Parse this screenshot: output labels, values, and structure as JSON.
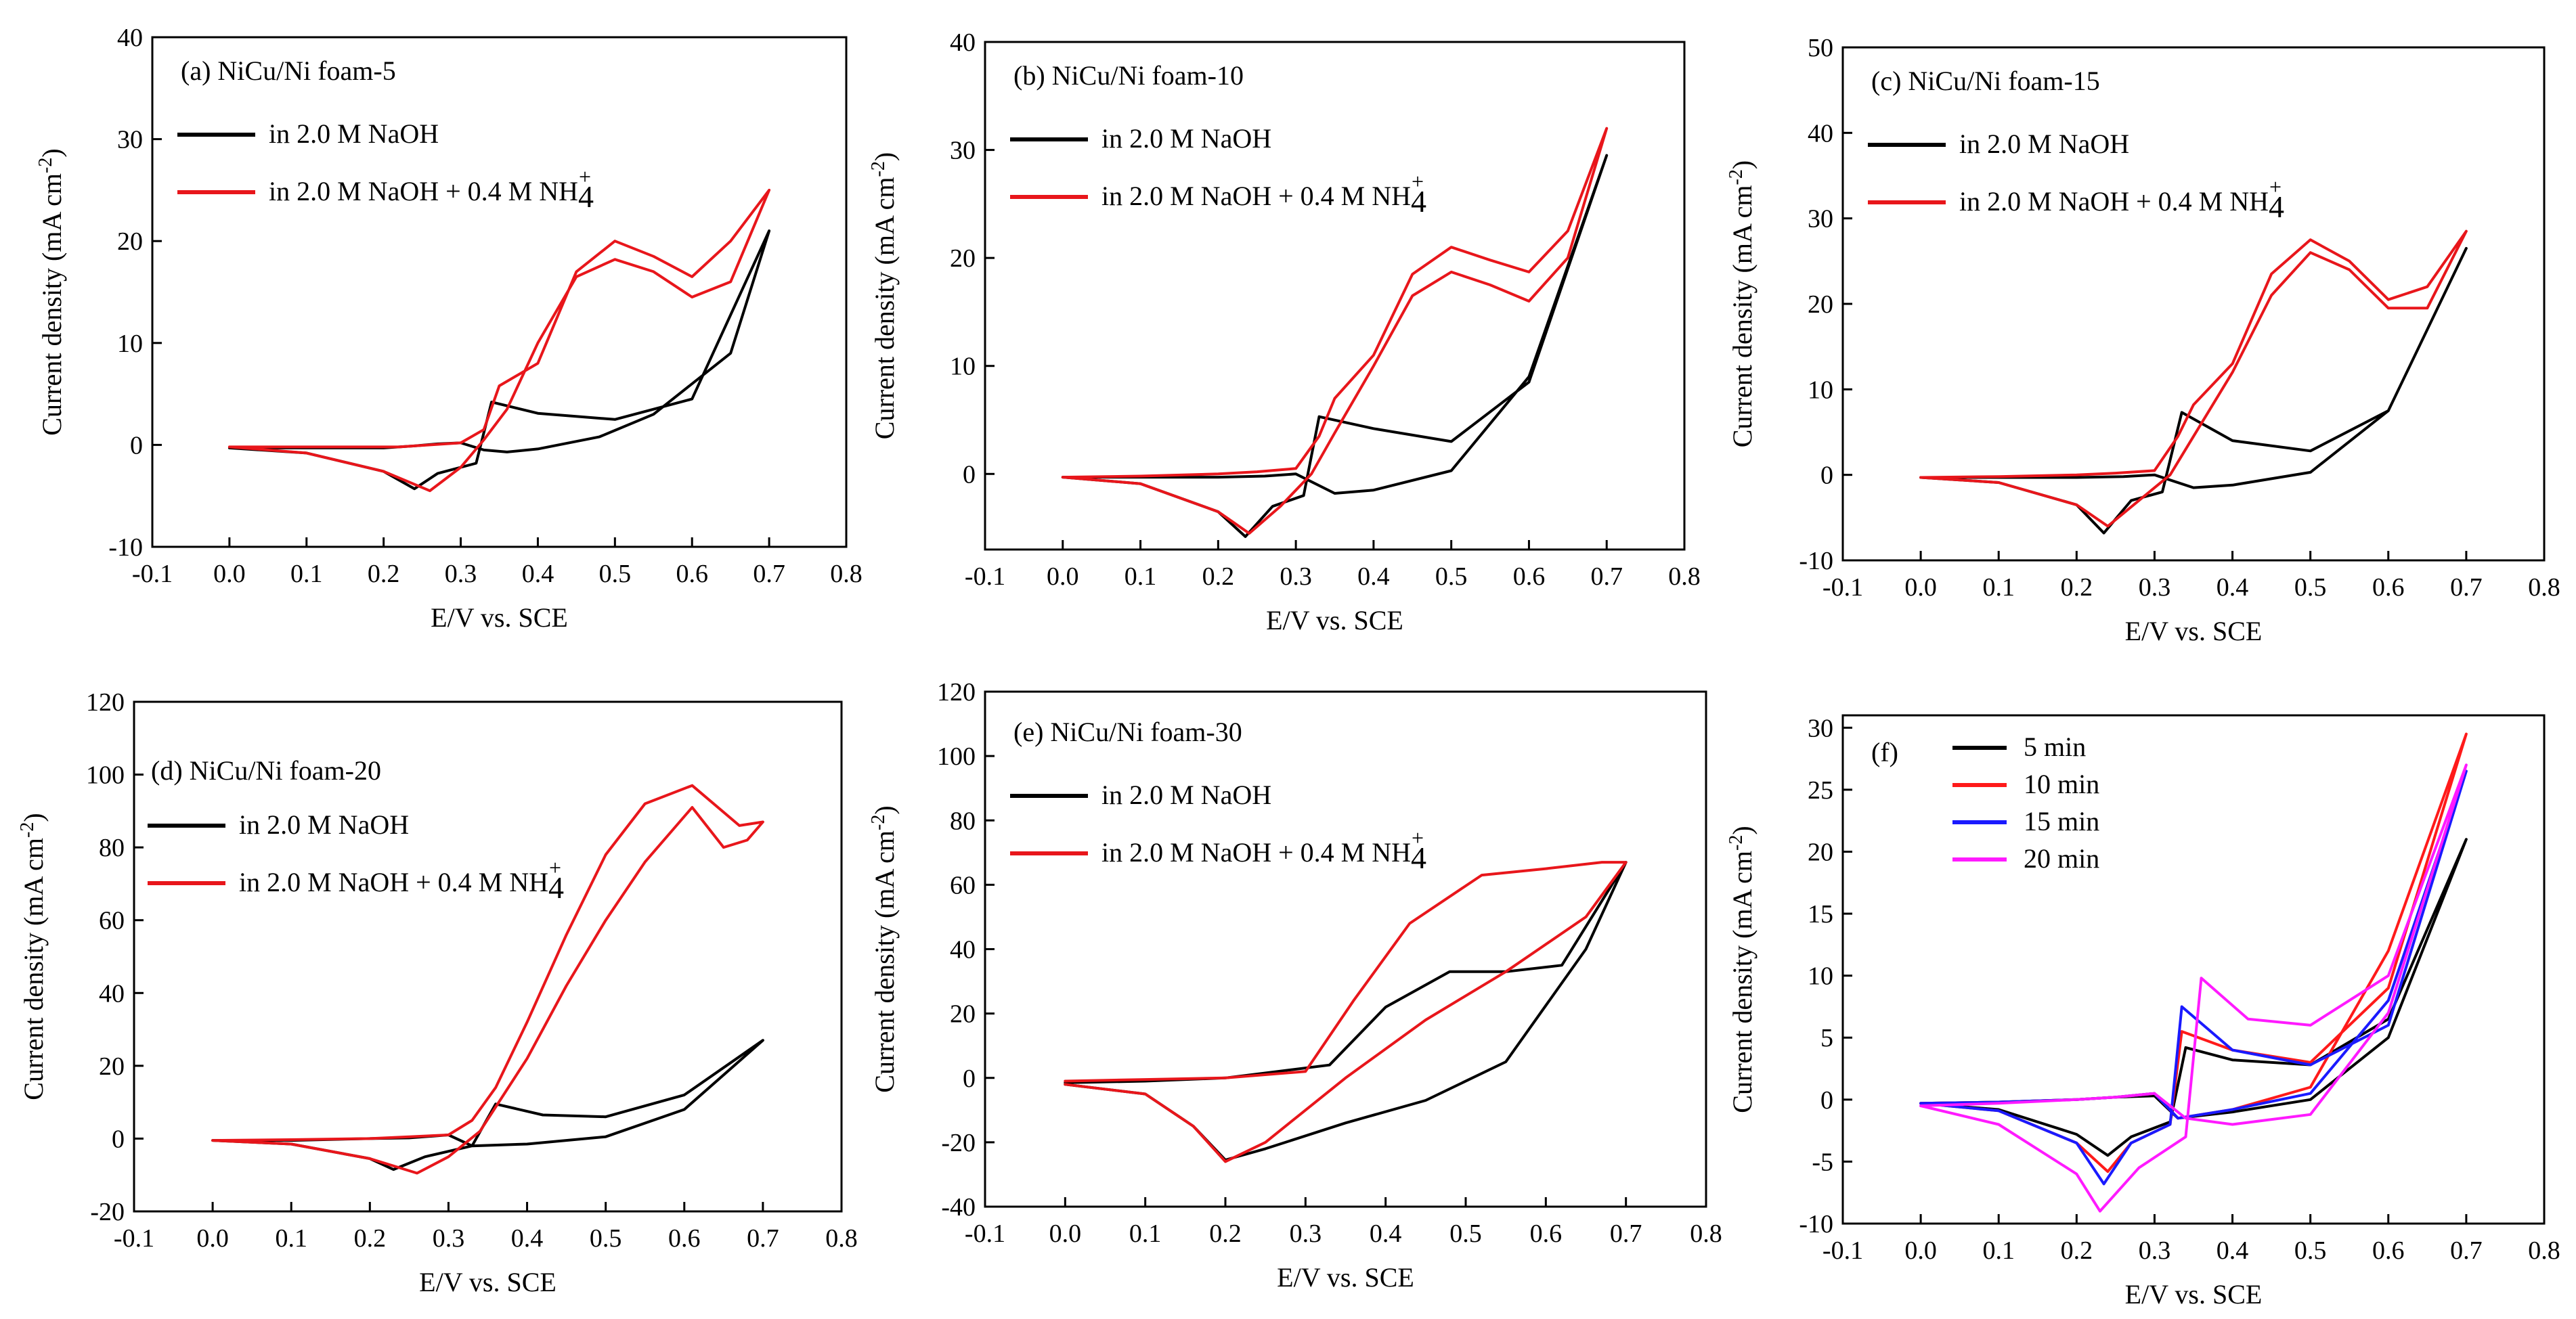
{
  "figure": {
    "alt": "Cyclic voltammetry curves of NiCu/Ni foam electrodes"
  },
  "chart_data": [
    {
      "type": "line",
      "panel": "(a)",
      "title": "(a) NiCu/Ni foam-5",
      "xlabel": "E/V vs. SCE",
      "ylabel": "Current density (mA cm-2)",
      "xlim": [
        -0.1,
        0.8
      ],
      "ylim": [
        -10,
        40
      ],
      "xticks": [
        -0.1,
        0.0,
        0.1,
        0.2,
        0.3,
        0.4,
        0.5,
        0.6,
        0.7,
        0.8
      ],
      "yticks": [
        -10,
        0,
        10,
        20,
        30,
        40
      ],
      "grid": false,
      "legend_position": "top-left",
      "series": [
        {
          "name": "in 2.0 M NaOH",
          "color": "#000000",
          "x": [
            0.0,
            0.1,
            0.2,
            0.24,
            0.27,
            0.32,
            0.34,
            0.4,
            0.5,
            0.6,
            0.7,
            0.65,
            0.55,
            0.48,
            0.4,
            0.36,
            0.33,
            0.3,
            0.27,
            0.24,
            0.2,
            0.1,
            0.0
          ],
          "y": [
            -0.3,
            -0.8,
            -2.6,
            -4.3,
            -2.8,
            -1.8,
            4.2,
            3.1,
            2.5,
            4.5,
            21,
            9,
            3,
            0.8,
            -0.4,
            -0.7,
            -0.5,
            0.2,
            0.1,
            -0.1,
            -0.3,
            -0.3,
            -0.3
          ]
        },
        {
          "name": "in 2.0 M NaOH + 0.4 M NH4+",
          "color": "#e8161b",
          "x": [
            0.0,
            0.1,
            0.2,
            0.26,
            0.3,
            0.33,
            0.36,
            0.4,
            0.45,
            0.5,
            0.55,
            0.6,
            0.65,
            0.7,
            0.65,
            0.6,
            0.55,
            0.5,
            0.45,
            0.4,
            0.35,
            0.33,
            0.3,
            0.26,
            0.22,
            0.2,
            0.1,
            0.0
          ],
          "y": [
            -0.2,
            -0.8,
            -2.6,
            -4.5,
            -2.2,
            0.5,
            3.5,
            10,
            16.5,
            18.2,
            17,
            14.5,
            16,
            25,
            20,
            16.5,
            18.5,
            20,
            17,
            8,
            5.8,
            1.5,
            0.2,
            0,
            -0.2,
            -0.2,
            -0.2,
            -0.2
          ]
        }
      ]
    },
    {
      "type": "line",
      "panel": "(b)",
      "title": "(b) NiCu/Ni foam-10",
      "xlabel": "E/V vs. SCE",
      "ylabel": "Current density (mA cm-2)",
      "xlim": [
        -0.1,
        0.8
      ],
      "ylim": [
        -7,
        40
      ],
      "xticks": [
        -0.1,
        0.0,
        0.1,
        0.2,
        0.3,
        0.4,
        0.5,
        0.6,
        0.7,
        0.8
      ],
      "yticks": [
        0,
        10,
        20,
        30,
        40
      ],
      "grid": false,
      "legend_position": "top-left",
      "series": [
        {
          "name": "in 2.0 M NaOH",
          "color": "#000000",
          "x": [
            0.0,
            0.1,
            0.2,
            0.235,
            0.27,
            0.31,
            0.33,
            0.4,
            0.5,
            0.6,
            0.7,
            0.6,
            0.5,
            0.4,
            0.35,
            0.3,
            0.26,
            0.2,
            0.1,
            0.0
          ],
          "y": [
            -0.3,
            -0.9,
            -3.5,
            -5.8,
            -3,
            -2,
            5.3,
            4.2,
            3,
            8.5,
            29.5,
            9,
            0.3,
            -1.5,
            -1.8,
            0,
            -0.2,
            -0.3,
            -0.3,
            -0.3
          ]
        },
        {
          "name": "in 2.0 M NaOH + 0.4 M NH4+",
          "color": "#e8161b",
          "x": [
            0.0,
            0.1,
            0.2,
            0.24,
            0.28,
            0.32,
            0.35,
            0.4,
            0.45,
            0.5,
            0.55,
            0.6,
            0.65,
            0.7,
            0.65,
            0.6,
            0.55,
            0.5,
            0.45,
            0.4,
            0.35,
            0.33,
            0.3,
            0.25,
            0.2,
            0.1,
            0.0
          ],
          "y": [
            -0.3,
            -0.9,
            -3.5,
            -5.5,
            -3,
            0,
            3.8,
            10,
            16.5,
            18.7,
            17.5,
            16,
            20,
            32,
            22.5,
            18.7,
            19.8,
            21,
            18.5,
            11,
            7,
            3.5,
            0.5,
            0.2,
            0,
            -0.2,
            -0.3
          ]
        }
      ]
    },
    {
      "type": "line",
      "panel": "(c)",
      "title": "(c) NiCu/Ni foam-15",
      "xlabel": "E/V vs. SCE",
      "ylabel": "Current density (mA cm-2)",
      "xlim": [
        -0.1,
        0.8
      ],
      "ylim": [
        -10,
        50
      ],
      "xticks": [
        -0.1,
        0.0,
        0.1,
        0.2,
        0.3,
        0.4,
        0.5,
        0.6,
        0.7,
        0.8
      ],
      "yticks": [
        -10,
        0,
        10,
        20,
        30,
        40,
        50
      ],
      "grid": false,
      "legend_position": "top-left",
      "series": [
        {
          "name": "in 2.0 M NaOH",
          "color": "#000000",
          "x": [
            0.0,
            0.1,
            0.2,
            0.235,
            0.27,
            0.31,
            0.335,
            0.4,
            0.5,
            0.6,
            0.7,
            0.6,
            0.5,
            0.4,
            0.35,
            0.3,
            0.26,
            0.2,
            0.1,
            0.0
          ],
          "y": [
            -0.3,
            -0.9,
            -3.5,
            -6.8,
            -3,
            -2,
            7.3,
            4,
            2.8,
            7.5,
            26.5,
            7.5,
            0.3,
            -1.2,
            -1.5,
            0,
            -0.2,
            -0.3,
            -0.3,
            -0.3
          ]
        },
        {
          "name": "in 2.0 M NaOH + 0.4 M NH4+",
          "color": "#e8161b",
          "x": [
            0.0,
            0.1,
            0.2,
            0.24,
            0.28,
            0.32,
            0.35,
            0.4,
            0.45,
            0.5,
            0.55,
            0.6,
            0.65,
            0.7,
            0.65,
            0.6,
            0.55,
            0.5,
            0.45,
            0.4,
            0.35,
            0.33,
            0.3,
            0.25,
            0.2,
            0.1,
            0.0
          ],
          "y": [
            -0.3,
            -0.9,
            -3.5,
            -6,
            -3,
            0,
            4.5,
            12,
            21,
            26,
            24,
            19.5,
            19.5,
            28.5,
            22,
            20.5,
            25,
            27.5,
            23.5,
            13,
            8.2,
            4.5,
            0.5,
            0.2,
            0,
            -0.2,
            -0.3
          ]
        }
      ]
    },
    {
      "type": "line",
      "panel": "(d)",
      "title": "(d) NiCu/Ni foam-20",
      "xlabel": "E/V vs. SCE",
      "ylabel": "Current density (mA cm-2)",
      "xlim": [
        -0.1,
        0.8
      ],
      "ylim": [
        -20,
        120
      ],
      "xticks": [
        -0.1,
        0.0,
        0.1,
        0.2,
        0.3,
        0.4,
        0.5,
        0.6,
        0.7,
        0.8
      ],
      "yticks": [
        -20,
        0,
        20,
        40,
        60,
        80,
        100,
        120
      ],
      "grid": false,
      "legend_position": "middle-left",
      "series": [
        {
          "name": "in 2.0 M NaOH",
          "color": "#000000",
          "x": [
            0.0,
            0.1,
            0.2,
            0.23,
            0.27,
            0.33,
            0.36,
            0.42,
            0.5,
            0.6,
            0.7,
            0.6,
            0.5,
            0.4,
            0.33,
            0.3,
            0.25,
            0.2,
            0.1,
            0.0
          ],
          "y": [
            -0.5,
            -1.5,
            -5.5,
            -8.5,
            -5,
            -2,
            9.5,
            6.5,
            6,
            12,
            27,
            8,
            0.5,
            -1.5,
            -2,
            1,
            0.2,
            0,
            -0.5,
            -0.5
          ]
        },
        {
          "name": "in 2.0 M NaOH + 0.4 M NH4+",
          "color": "#e8161b",
          "x": [
            0.0,
            0.1,
            0.2,
            0.26,
            0.3,
            0.34,
            0.4,
            0.45,
            0.5,
            0.55,
            0.61,
            0.65,
            0.68,
            0.7,
            0.67,
            0.61,
            0.55,
            0.5,
            0.45,
            0.4,
            0.36,
            0.33,
            0.3,
            0.25,
            0.2,
            0.1,
            0.0
          ],
          "y": [
            -0.5,
            -1.5,
            -5.5,
            -9.5,
            -5,
            2,
            22,
            42,
            60,
            76,
            91,
            80,
            82,
            87,
            86,
            97,
            92,
            78,
            56,
            32,
            14,
            5,
            1,
            0.5,
            0,
            -0.3,
            -0.5
          ]
        }
      ]
    },
    {
      "type": "line",
      "panel": "(e)",
      "title": "(e) NiCu/Ni foam-30",
      "xlabel": "E/V vs. SCE",
      "ylabel": "Current density (mA cm-2)",
      "xlim": [
        -0.1,
        0.8
      ],
      "ylim": [
        -40,
        120
      ],
      "xticks": [
        -0.1,
        0.0,
        0.1,
        0.2,
        0.3,
        0.4,
        0.5,
        0.6,
        0.7,
        0.8
      ],
      "yticks": [
        -40,
        -20,
        0,
        20,
        40,
        60,
        80,
        100,
        120
      ],
      "grid": false,
      "legend_position": "middle-left",
      "series": [
        {
          "name": "in 2.0 M NaOH",
          "color": "#000000",
          "x": [
            0.0,
            0.1,
            0.16,
            0.2,
            0.25,
            0.35,
            0.45,
            0.55,
            0.65,
            0.7,
            0.62,
            0.55,
            0.48,
            0.4,
            0.33,
            0.2,
            0.1,
            0.0
          ],
          "y": [
            -2,
            -5,
            -15,
            -25.5,
            -22,
            -14,
            -7,
            5,
            40,
            67,
            35,
            33,
            33,
            22,
            4,
            0,
            -1,
            -1.5
          ]
        },
        {
          "name": "in 2.0 M NaOH + 0.4 M NH4+",
          "color": "#e8161b",
          "x": [
            0.0,
            0.1,
            0.16,
            0.2,
            0.25,
            0.35,
            0.45,
            0.55,
            0.65,
            0.7,
            0.67,
            0.6,
            0.52,
            0.43,
            0.36,
            0.3,
            0.2,
            0.1,
            0.0
          ],
          "y": [
            -2,
            -5,
            -15,
            -26,
            -20,
            0,
            18,
            33,
            50,
            67,
            67,
            65,
            63,
            48,
            24,
            2,
            0,
            -0.5,
            -1
          ]
        }
      ]
    },
    {
      "type": "line",
      "panel": "(f)",
      "title": "(f)",
      "xlabel": "E/V vs. SCE",
      "ylabel": "Current density (mA cm-2)",
      "xlim": [
        -0.1,
        0.8
      ],
      "ylim": [
        -10,
        31
      ],
      "xticks": [
        -0.1,
        0.0,
        0.1,
        0.2,
        0.3,
        0.4,
        0.5,
        0.6,
        0.7,
        0.8
      ],
      "yticks": [
        -10,
        -5,
        0,
        5,
        10,
        15,
        20,
        25,
        30
      ],
      "grid": false,
      "legend_position": "top-left",
      "series": [
        {
          "name": "5 min",
          "color": "#000000",
          "x": [
            0.0,
            0.1,
            0.2,
            0.24,
            0.27,
            0.32,
            0.34,
            0.4,
            0.5,
            0.6,
            0.7,
            0.6,
            0.5,
            0.4,
            0.33,
            0.3,
            0.25,
            0.2,
            0.1,
            0.0
          ],
          "y": [
            -0.3,
            -0.8,
            -2.8,
            -4.5,
            -3,
            -1.8,
            4.2,
            3.2,
            2.8,
            6.5,
            21,
            5,
            0,
            -1,
            -1.5,
            0.3,
            0.2,
            0,
            -0.2,
            -0.3
          ]
        },
        {
          "name": "10 min",
          "color": "#ff1a1a",
          "x": [
            0.0,
            0.1,
            0.2,
            0.24,
            0.27,
            0.32,
            0.335,
            0.4,
            0.5,
            0.6,
            0.7,
            0.6,
            0.5,
            0.4,
            0.33,
            0.3,
            0.25,
            0.2,
            0.1,
            0.0
          ],
          "y": [
            -0.3,
            -0.9,
            -3.5,
            -5.8,
            -3.5,
            -2,
            5.5,
            4,
            3,
            9,
            29.5,
            12,
            1,
            -0.8,
            -1.5,
            0.5,
            0.2,
            0,
            -0.2,
            -0.3
          ]
        },
        {
          "name": "15 min",
          "color": "#1a1aff",
          "x": [
            0.0,
            0.1,
            0.2,
            0.235,
            0.27,
            0.32,
            0.335,
            0.4,
            0.5,
            0.6,
            0.7,
            0.6,
            0.5,
            0.4,
            0.33,
            0.3,
            0.25,
            0.2,
            0.1,
            0.0
          ],
          "y": [
            -0.3,
            -0.9,
            -3.5,
            -6.8,
            -3.5,
            -2,
            7.5,
            4,
            2.8,
            6,
            26.5,
            8,
            0.5,
            -0.8,
            -1.5,
            0.5,
            0.2,
            0,
            -0.2,
            -0.3
          ]
        },
        {
          "name": "20 min",
          "color": "#ff1aff",
          "x": [
            0.0,
            0.1,
            0.2,
            0.23,
            0.28,
            0.34,
            0.36,
            0.42,
            0.5,
            0.6,
            0.7,
            0.6,
            0.5,
            0.4,
            0.34,
            0.3,
            0.25,
            0.2,
            0.1,
            0.0
          ],
          "y": [
            -0.5,
            -2,
            -6,
            -9,
            -5.5,
            -3,
            9.8,
            6.5,
            6,
            10,
            27,
            7,
            -1.2,
            -2,
            -1.5,
            0.5,
            0.2,
            0,
            -0.3,
            -0.5
          ]
        }
      ]
    }
  ]
}
